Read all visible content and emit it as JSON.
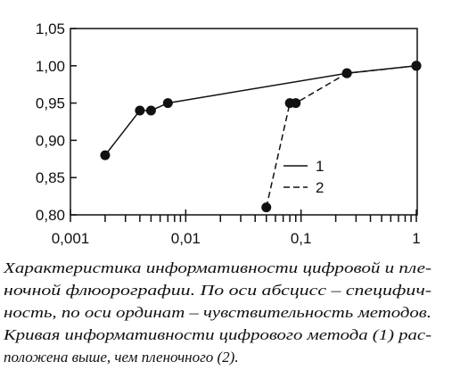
{
  "chart_data": {
    "type": "line",
    "xscale": "log",
    "color": "#111111",
    "xlim": [
      0.001,
      1
    ],
    "ylim": [
      0.8,
      1.05
    ],
    "xticks": [
      {
        "value": 0.001,
        "label": "0,001"
      },
      {
        "value": 0.01,
        "label": "0,01"
      },
      {
        "value": 0.1,
        "label": "0,1"
      },
      1
    ],
    "xminorticks": [
      0.002,
      0.003,
      0.004,
      0.005,
      0.006,
      0.007,
      0.008,
      0.009,
      0.02,
      0.03,
      0.04,
      0.05,
      0.06,
      0.07,
      0.08,
      0.09,
      0.2,
      0.3,
      0.4,
      0.5,
      0.6,
      0.7,
      0.8,
      0.9
    ],
    "yticks": [
      {
        "value": 0.8,
        "label": "0,80"
      },
      {
        "value": 0.85,
        "label": "0,85"
      },
      {
        "value": 0.9,
        "label": "0,90"
      },
      {
        "value": 0.95,
        "label": "0,95"
      },
      {
        "value": 1.0,
        "label": "1,00"
      },
      {
        "value": 1.05,
        "label": "1,05"
      }
    ],
    "series": [
      {
        "name": "1",
        "dash": "solid",
        "x": [
          0.002,
          0.004,
          0.005,
          0.007,
          0.25,
          1
        ],
        "values": [
          0.88,
          0.94,
          0.94,
          0.95,
          0.99,
          1.0
        ]
      },
      {
        "name": "2",
        "dash": "dashed",
        "x": [
          0.05,
          0.08,
          0.09,
          0.25,
          1
        ],
        "values": [
          0.81,
          0.95,
          0.95,
          0.99,
          1.0
        ]
      }
    ]
  },
  "caption": [
    "Характеристика информативности цифровой и пле-",
    "ночной флюорографии. По оси абсцисс – специфич-",
    "ность, по оси ординат – чувствительность методов.",
    "Кривая информативности цифрового метода (1) рас-",
    "положена выше, чем пленочного (2)."
  ]
}
